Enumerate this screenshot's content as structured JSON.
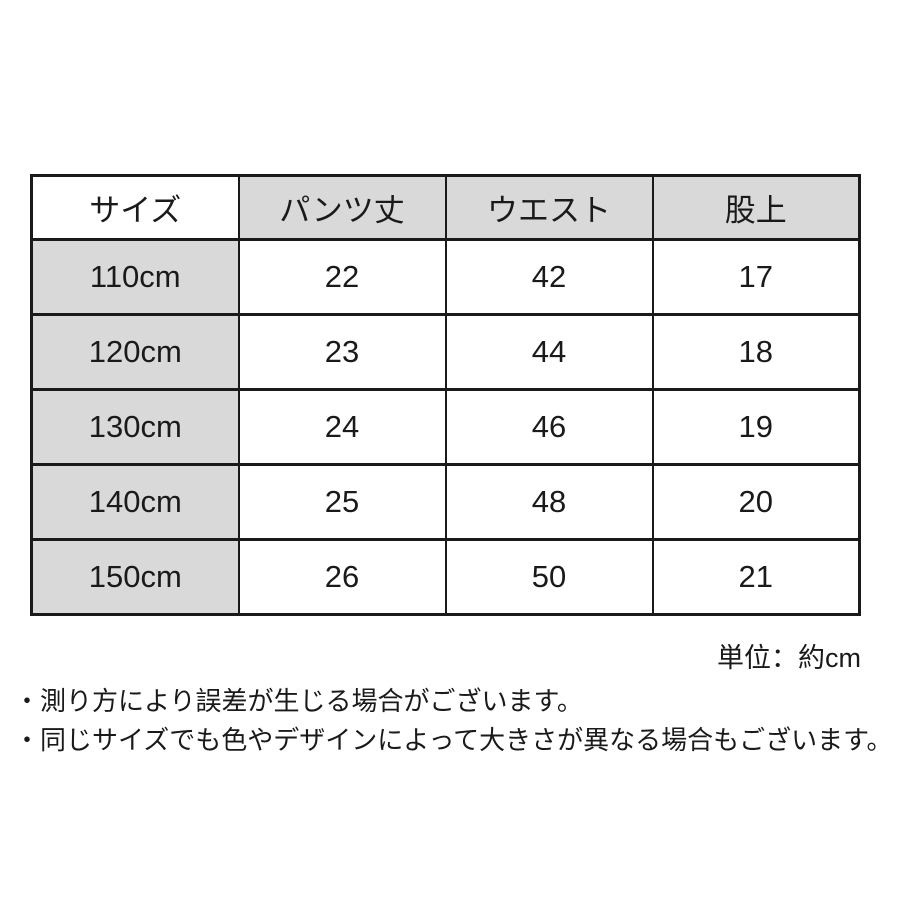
{
  "chart_data": {
    "type": "table",
    "columns": [
      "サイズ",
      "パンツ丈",
      "ウエスト",
      "股上"
    ],
    "rows": [
      [
        "110cm",
        "22",
        "42",
        "17"
      ],
      [
        "120cm",
        "23",
        "44",
        "18"
      ],
      [
        "130cm",
        "24",
        "46",
        "19"
      ],
      [
        "140cm",
        "25",
        "48",
        "20"
      ],
      [
        "150cm",
        "26",
        "50",
        "21"
      ]
    ],
    "unit_note": "単位：約cm",
    "footnotes": [
      "・測り方により誤差が生じる場合がございます。",
      "・同じサイズでも色やデザインによって大きさが異なる場合もございます。"
    ]
  },
  "colors": {
    "background": "#ffffff",
    "table_border": "#1a1a1a",
    "header_bg": "#d9d9d9",
    "size_column_bg": "#d9d9d9",
    "text": "#1a1a1a"
  }
}
